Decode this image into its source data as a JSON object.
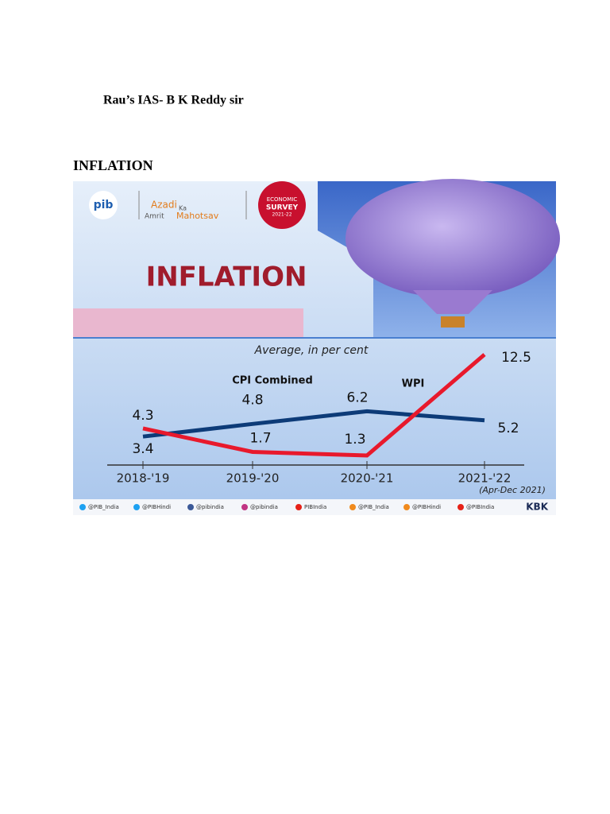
{
  "header": "Rau’s IAS- B K Reddy sir",
  "heading": "INFLATION",
  "infographic": {
    "pib_logo": "pib",
    "amrit_logo": [
      "Azadi",
      "Ka",
      "Amrit",
      "Mahotsav"
    ],
    "survey_logo": [
      "ECONOMIC",
      "SURVEY",
      "2021-22"
    ],
    "banner_title": "INFLATION",
    "handles": [
      "@PIB_India",
      "@PIBHindi",
      "@pibindia",
      "@pibindia",
      "PIBIndia",
      "@PIB_India",
      "@PIBHindi",
      "@PIBIndia"
    ],
    "credit": "KBK"
  },
  "chart_data": {
    "type": "line",
    "subtitle": "Average, in per cent",
    "categories": [
      "2018-'19",
      "2019-'20",
      "2020-'21",
      "2021-'22"
    ],
    "category_note": "(Apr-Dec 2021)",
    "series": [
      {
        "name": "CPI Combined",
        "color": "#0d3b78",
        "values": [
          3.4,
          4.8,
          6.2,
          5.2
        ]
      },
      {
        "name": "WPI",
        "color": "#e8192c",
        "values": [
          4.3,
          1.7,
          1.3,
          12.5
        ]
      }
    ]
  }
}
